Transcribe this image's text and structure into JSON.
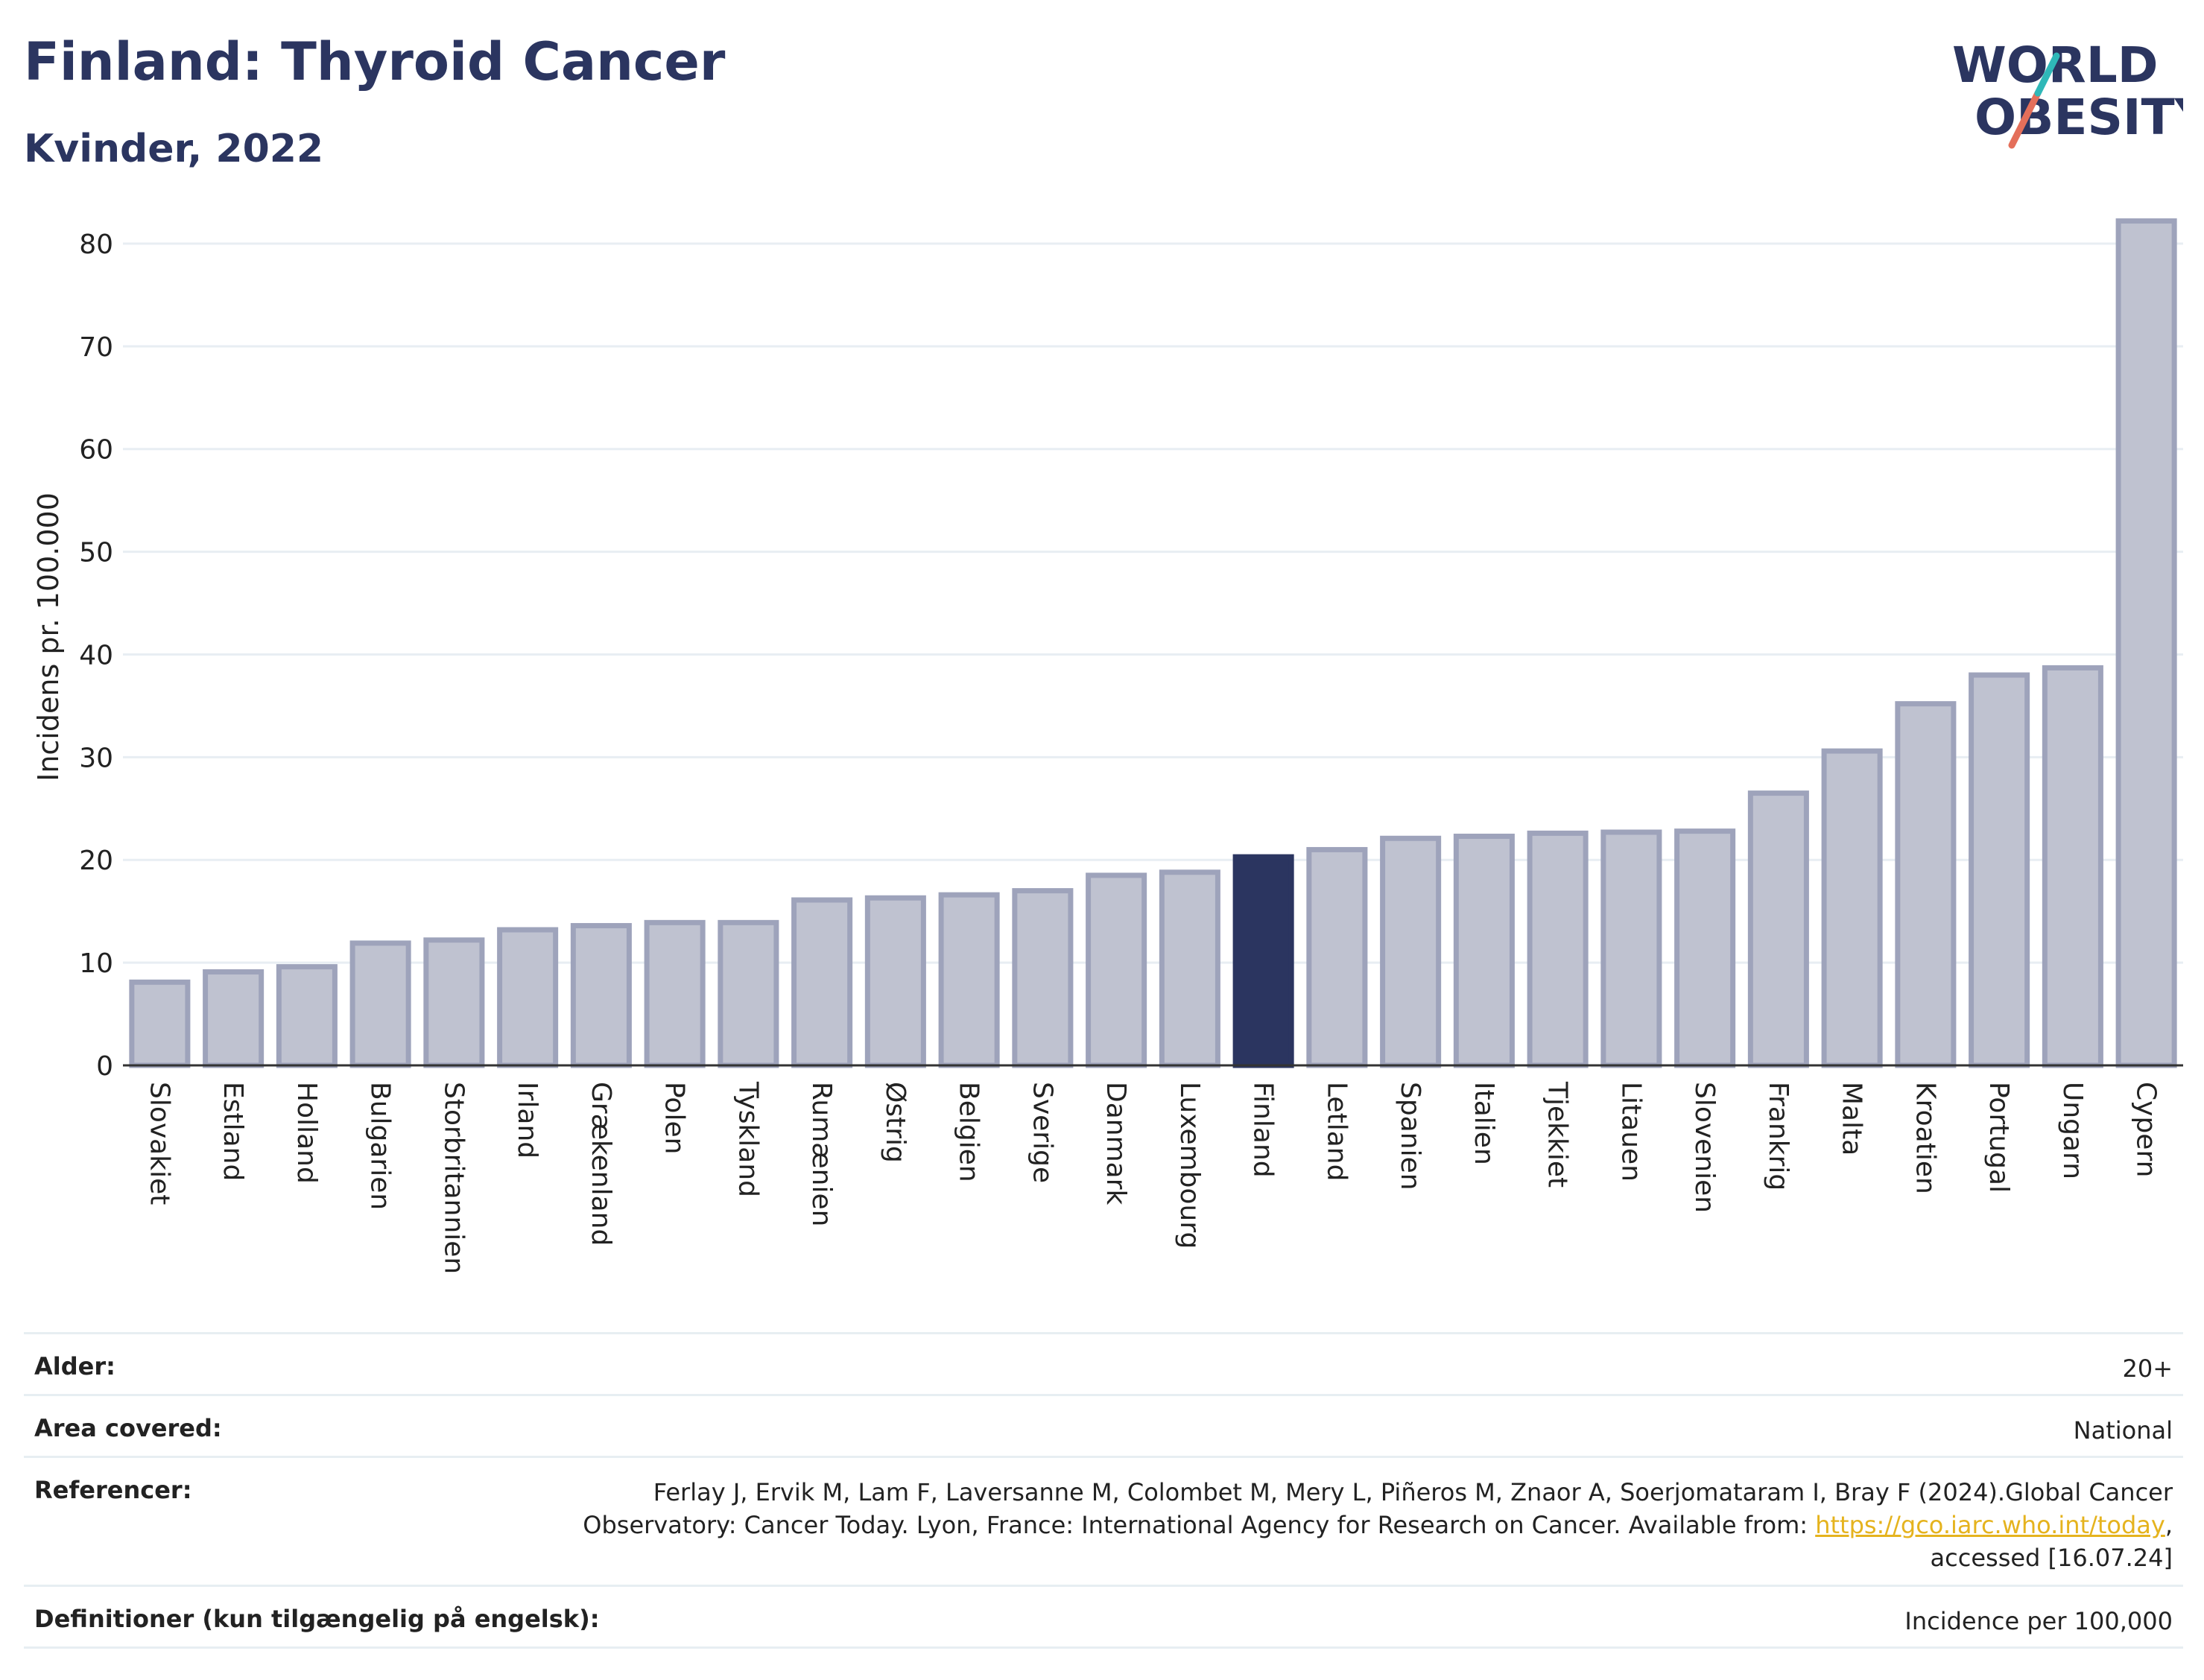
{
  "header": {
    "title": "Finland: Thyroid Cancer",
    "subtitle": "Kvinder, 2022",
    "logo_line1": "WORLD",
    "logo_line2": "OBESITY"
  },
  "chart_data": {
    "type": "bar",
    "categories": [
      "Slovakiet",
      "Estland",
      "Holland",
      "Bulgarien",
      "Storbritannien",
      "Irland",
      "Grækenland",
      "Polen",
      "Tyskland",
      "Rumænien",
      "Østrig",
      "Belgien",
      "Sverige",
      "Danmark",
      "Luxembourg",
      "Finland",
      "Letland",
      "Spanien",
      "Italien",
      "Tjekkiet",
      "Litauen",
      "Slovenien",
      "Frankrig",
      "Malta",
      "Kroatien",
      "Portugal",
      "Ungarn",
      "Cypern"
    ],
    "values": [
      8.1,
      9.1,
      9.6,
      11.9,
      12.2,
      13.2,
      13.6,
      13.9,
      13.9,
      16.1,
      16.3,
      16.6,
      17.0,
      18.5,
      18.8,
      20.3,
      21.0,
      22.1,
      22.3,
      22.6,
      22.7,
      22.8,
      26.5,
      30.6,
      35.2,
      38.0,
      38.7,
      82.2
    ],
    "highlight": "Finland",
    "xlabel": "",
    "ylabel": "Incidens pr. 100.000",
    "ylim": [
      0,
      85
    ],
    "yticks": [
      0,
      10,
      20,
      30,
      40,
      50,
      60,
      70,
      80
    ],
    "grid": true,
    "colors": {
      "bar": "#bfc2d0",
      "bar_border": "#9ea3bb",
      "highlight": "#2b3560",
      "grid": "#e8eef3"
    }
  },
  "meta": {
    "age_label": "Alder:",
    "age_value": "20+",
    "area_label": "Area covered:",
    "area_value": "National",
    "refs_label": "Referencer:",
    "refs_text1": "Ferlay J, Ervik M, Lam F, Laversanne M, Colombet M, Mery L, Piñeros M, Znaor A, Soerjomataram I, Bray F (2024).Global Cancer",
    "refs_text2": "Observatory: Cancer Today. Lyon, France: International Agency for Research on Cancer. Available from:",
    "refs_link": "https://gco.iarc.who.int/today",
    "refs_text3": "accessed [16.07.24]",
    "defs_label": "Definitioner (kun tilgængelig på engelsk):",
    "defs_value": "Incidence per 100,000"
  }
}
